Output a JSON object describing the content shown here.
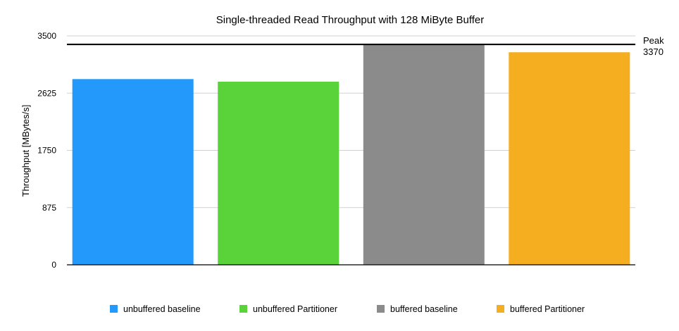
{
  "chart_data": {
    "type": "bar",
    "title": "Single-threaded Read Throughput with 128 MiByte Buffer",
    "xlabel": "",
    "ylabel": "Throughput [MBytes/s]",
    "ylim": [
      0,
      3500
    ],
    "yticks": [
      0,
      875,
      1750,
      2625,
      3500
    ],
    "grid": true,
    "legend_position": "bottom",
    "series": [
      {
        "name": "unbuffered baseline",
        "value": 2840,
        "color": "#2299fb"
      },
      {
        "name": "unbuffered Partitioner",
        "value": 2800,
        "color": "#5ad33a"
      },
      {
        "name": "buffered baseline",
        "value": 3370,
        "color": "#8b8b8b"
      },
      {
        "name": "buffered Partitioner",
        "value": 3250,
        "color": "#f4ae20"
      }
    ],
    "reference_line": {
      "value": 3370,
      "label_line1": "Peak",
      "label_line2": "3370"
    }
  }
}
